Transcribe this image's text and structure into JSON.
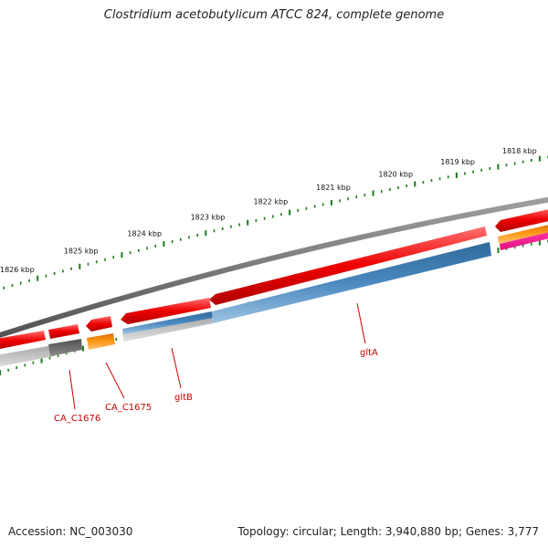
{
  "title": "Clostridium acetobutylicum ATCC 824, complete genome",
  "footer": {
    "accession": "Accession: NC_003030",
    "topology": "Topology: circular; Length: 3,940,880 bp; Genes: 3,777"
  },
  "colors": {
    "backbone": "#808080",
    "cds_forward": "#ee0000",
    "cds_reverse": "#3f7fb5",
    "pseudogene": "#808080",
    "rna": "#ff8c00",
    "misc": "#ff1493",
    "gc_skew": "#b0b0b0",
    "ticks": "#1a7a1a",
    "gene_label": "#cc0000"
  },
  "kbp_labels": [
    {
      "kbp": 1818,
      "text": "1818 kbp"
    },
    {
      "kbp": 1819,
      "text": "1819 kbp"
    },
    {
      "kbp": 1820,
      "text": "1820 kbp"
    },
    {
      "kbp": 1821,
      "text": "1821 kbp"
    },
    {
      "kbp": 1822,
      "text": "1822 kbp"
    },
    {
      "kbp": 1823,
      "text": "1823 kbp"
    },
    {
      "kbp": 1824,
      "text": "1824 kbp"
    },
    {
      "kbp": 1825,
      "text": "1825 kbp"
    },
    {
      "kbp": 1826,
      "text": "1826 kbp"
    }
  ],
  "gene_labels": [
    {
      "name": "gltA",
      "text": "gltA"
    },
    {
      "name": "gltB",
      "text": "gltB"
    },
    {
      "name": "CA_C1675",
      "text": "CA_C1675"
    },
    {
      "name": "CA_C1676",
      "text": "CA_C1676"
    }
  ]
}
